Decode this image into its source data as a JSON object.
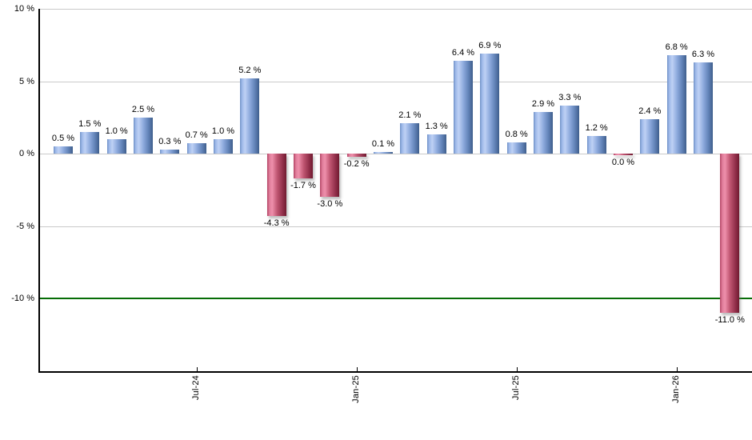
{
  "chart_data": {
    "type": "bar",
    "title": "",
    "unit": "%",
    "values": [
      0.5,
      1.5,
      1.0,
      2.5,
      0.3,
      0.7,
      1.0,
      5.2,
      -4.3,
      -1.7,
      -3.0,
      -0.2,
      0.1,
      2.1,
      1.3,
      6.4,
      6.9,
      0.8,
      2.9,
      3.3,
      1.2,
      0.0,
      2.4,
      6.8,
      6.3,
      -11.0
    ],
    "bar_labels": [
      "0.5 %",
      "1.5 %",
      "1.0 %",
      "2.5 %",
      "0.3 %",
      "0.7 %",
      "1.0 %",
      "5.2 %",
      "-4.3 %",
      "-1.7 %",
      "-3.0 %",
      "-0.2 %",
      "0.1 %",
      "2.1 %",
      "1.3 %",
      "6.4 %",
      "6.9 %",
      "0.8 %",
      "2.9 %",
      "3.3 %",
      "1.2 %",
      "0.0 %",
      "2.4 %",
      "6.8 %",
      "6.3 %",
      "-11.0 %"
    ],
    "bar_colors": [
      "blue",
      "blue",
      "blue",
      "blue",
      "blue",
      "blue",
      "blue",
      "blue",
      "red",
      "red",
      "red",
      "red",
      "blue",
      "blue",
      "blue",
      "blue",
      "blue",
      "blue",
      "blue",
      "blue",
      "blue",
      "red",
      "blue",
      "blue",
      "blue",
      "red"
    ],
    "y_ticks": [
      {
        "value": 10,
        "label": "10 %"
      },
      {
        "value": 5,
        "label": "5 %"
      },
      {
        "value": 0,
        "label": "0 %"
      },
      {
        "value": -5,
        "label": "-5 %"
      },
      {
        "value": -10,
        "label": "-10 %"
      }
    ],
    "x_ticks": [
      {
        "bar_index": 5,
        "label": "Jul-24"
      },
      {
        "bar_index": 11,
        "label": "Jan-25"
      },
      {
        "bar_index": 17,
        "label": "Jul-25"
      },
      {
        "bar_index": 23,
        "label": "Jan-26"
      }
    ],
    "reference_line": {
      "value": -10,
      "color": "#066d06"
    },
    "ylim": [
      -15.1,
      10.6
    ],
    "grid": true,
    "legend": false,
    "colors": {
      "positive_bar_highlight": "#bed1f5",
      "positive_bar_dark": "#3f5e8c",
      "negative_bar_highlight": "#ee8fab",
      "negative_bar_dark": "#701a30",
      "grid": "#c9c9c9",
      "axis": "#000000",
      "reference_line": "#066d06"
    }
  }
}
